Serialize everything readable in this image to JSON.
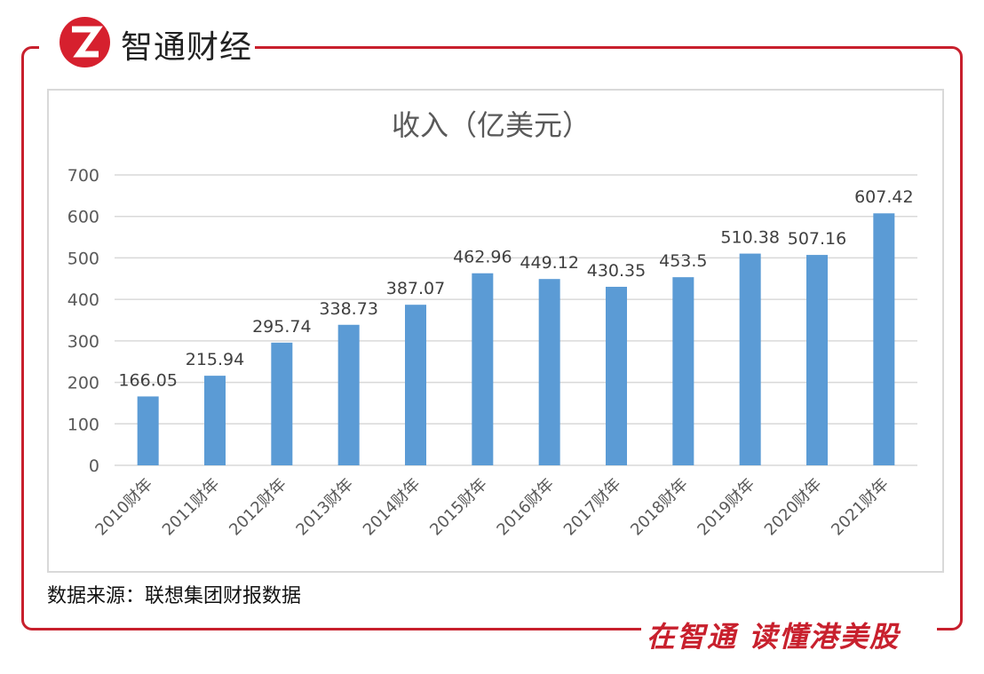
{
  "brand": {
    "name": "智通财经",
    "logo_letter": "Z",
    "slogan": "在智通 读懂港美股",
    "accent": "#c8202d"
  },
  "source": "数据来源：联想集团财报数据",
  "chart_data": {
    "type": "bar",
    "title": "收入（亿美元）",
    "categories": [
      "2010财年",
      "2011财年",
      "2012财年",
      "2013财年",
      "2014财年",
      "2015财年",
      "2016财年",
      "2017财年",
      "2018财年",
      "2019财年",
      "2020财年",
      "2021财年"
    ],
    "values": [
      166.05,
      215.94,
      295.74,
      338.73,
      387.07,
      462.96,
      449.12,
      430.35,
      453.5,
      510.38,
      507.16,
      607.42
    ],
    "value_labels": [
      "166.05",
      "215.94",
      "295.74",
      "338.73",
      "387.07",
      "462.96",
      "449.12",
      "430.35",
      "453.5",
      "510.38",
      "507.16",
      "607.42"
    ],
    "ylim": [
      0,
      700
    ],
    "yticks": [
      "0",
      "100",
      "200",
      "300",
      "400",
      "500",
      "600",
      "700"
    ],
    "grid": true,
    "bar_color": "#5b9bd5",
    "legend": "none"
  }
}
